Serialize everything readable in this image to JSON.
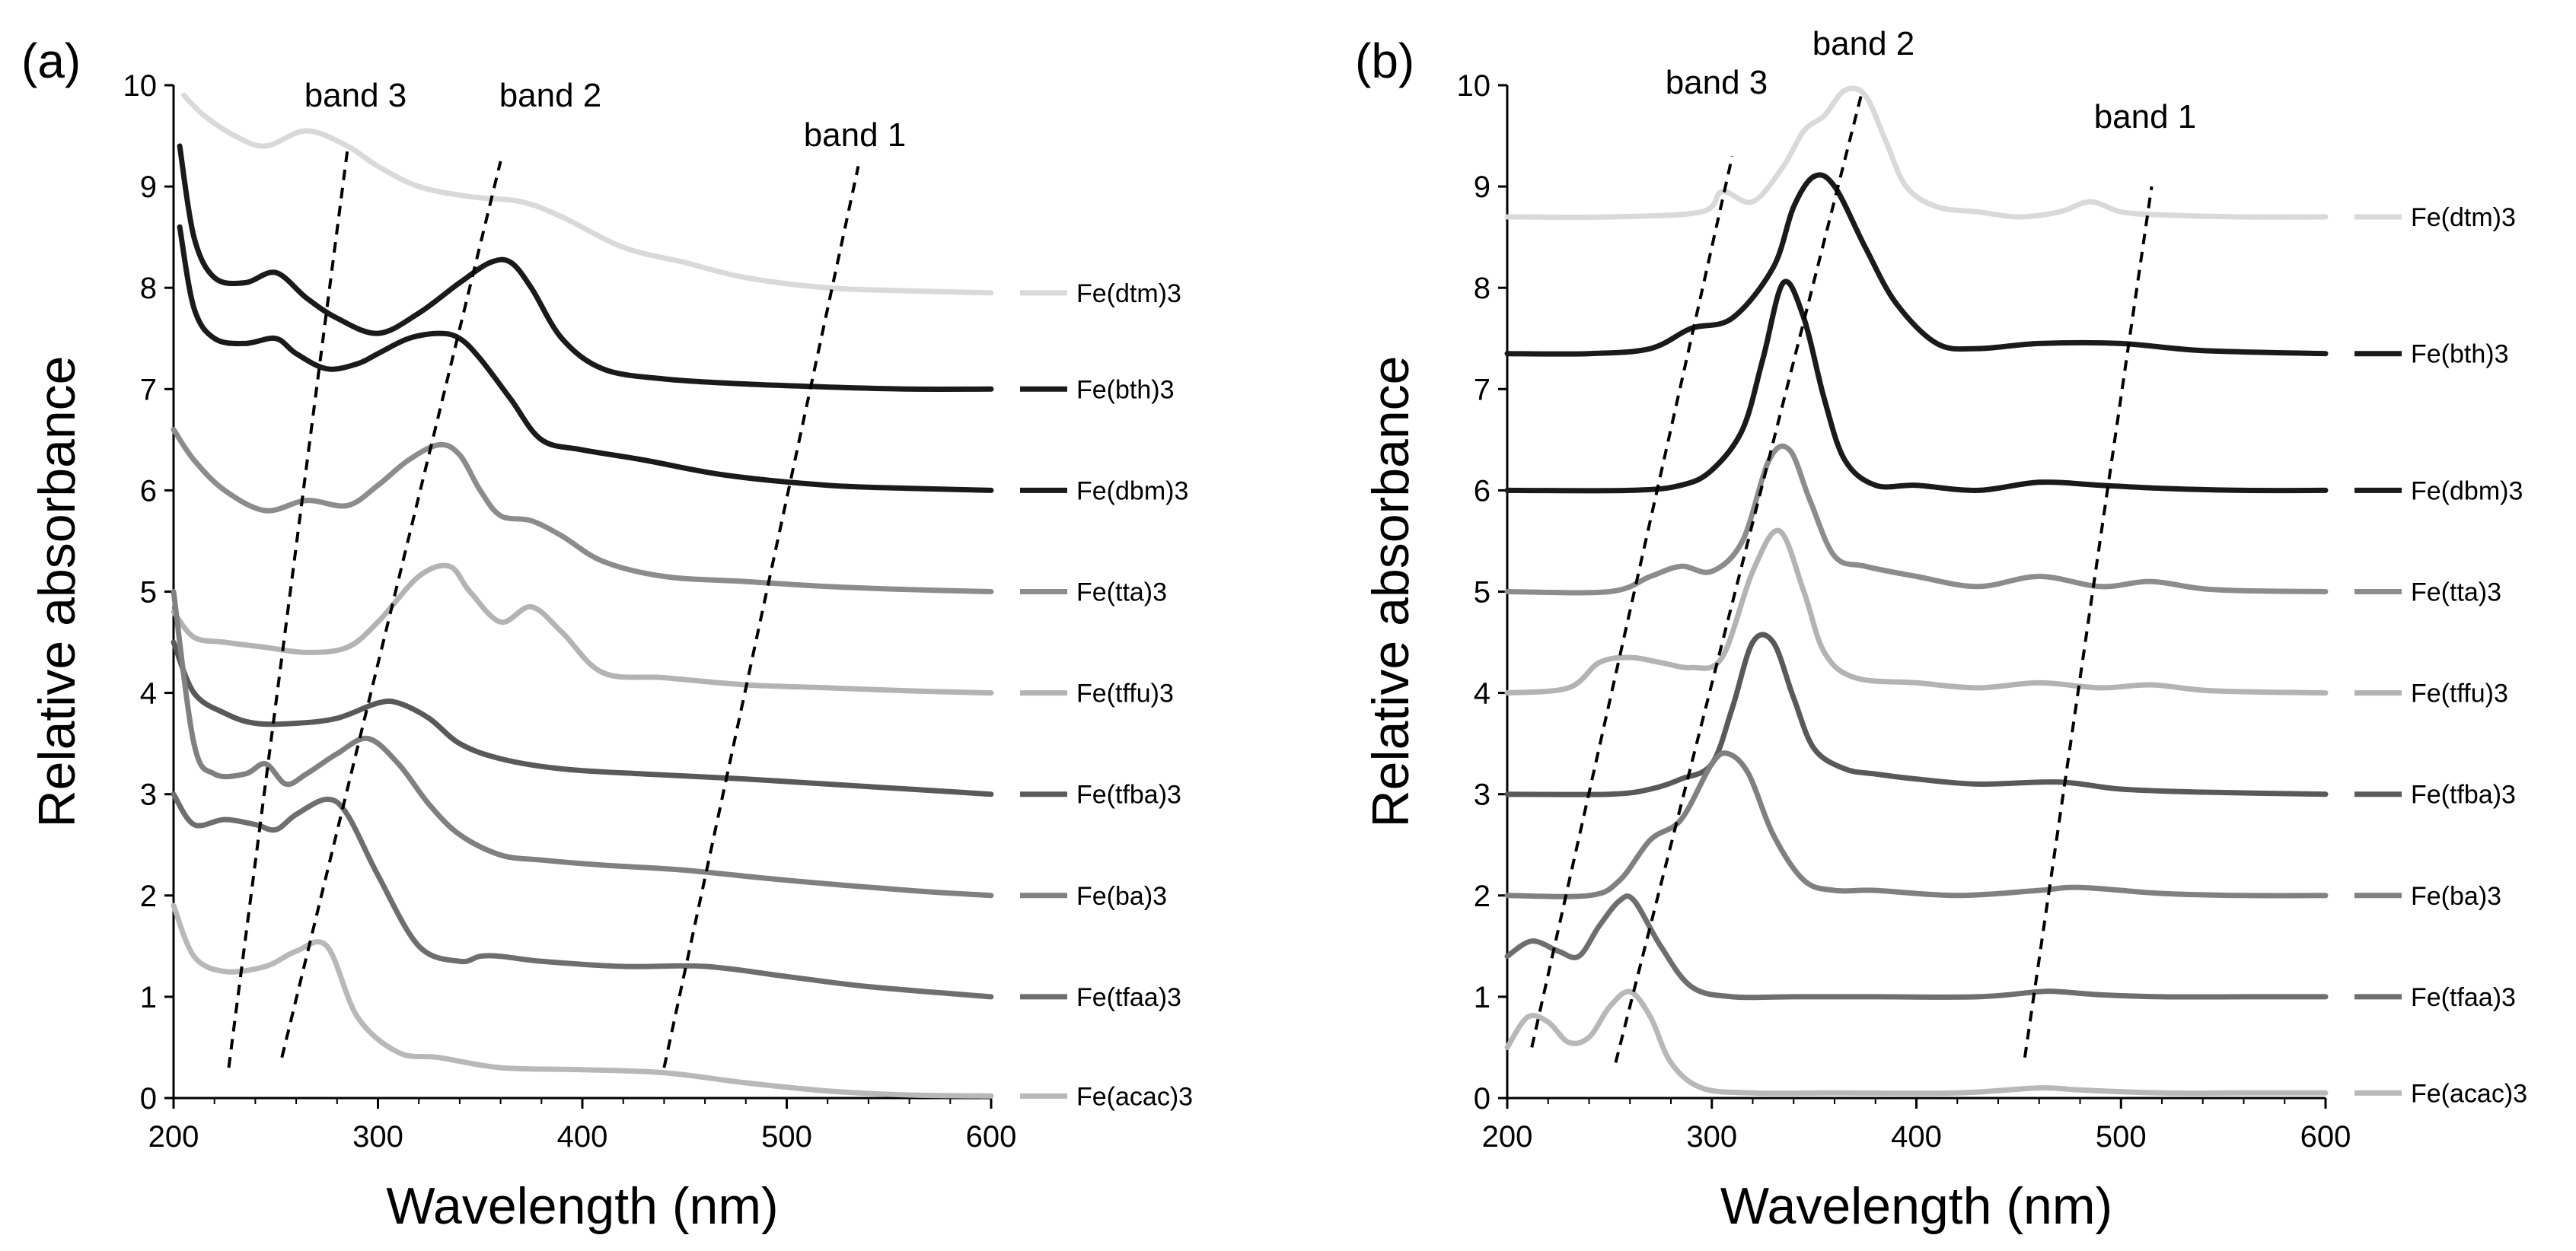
{
  "chart_data": [
    {
      "type": "line",
      "panel_label": "(a)",
      "xlabel": "Wavelength (nm)",
      "ylabel": "Relative absorbance",
      "xlim": [
        200,
        600
      ],
      "ylim": [
        0,
        10
      ],
      "xticks": [
        "200",
        "300",
        "400",
        "500",
        "600"
      ],
      "yticks": [
        "0",
        "1",
        "2",
        "3",
        "4",
        "5",
        "6",
        "7",
        "8",
        "9",
        "10"
      ],
      "series": [
        {
          "name": "Fe(dtm)3",
          "color": "#d9d9d9",
          "x": [
            205,
            215,
            230,
            245,
            265,
            285,
            300,
            320,
            345,
            370,
            390,
            420,
            450,
            480,
            520,
            560,
            600
          ],
          "y": [
            9.9,
            9.7,
            9.5,
            9.4,
            9.55,
            9.4,
            9.2,
            9.0,
            8.9,
            8.85,
            8.7,
            8.4,
            8.25,
            8.1,
            8.0,
            7.97,
            7.95
          ]
        },
        {
          "name": "Fe(bth)3",
          "color": "#1a1a1a",
          "x": [
            203,
            210,
            220,
            235,
            250,
            265,
            280,
            300,
            320,
            340,
            355,
            365,
            375,
            390,
            410,
            440,
            480,
            520,
            560,
            600
          ],
          "y": [
            9.4,
            8.5,
            8.1,
            8.05,
            8.15,
            7.9,
            7.7,
            7.55,
            7.75,
            8.05,
            8.25,
            8.25,
            8.0,
            7.5,
            7.2,
            7.1,
            7.05,
            7.02,
            7.0,
            7.0
          ]
        },
        {
          "name": "Fe(dbm)3",
          "color": "#1a1a1a",
          "x": [
            203,
            210,
            220,
            235,
            250,
            260,
            275,
            290,
            300,
            315,
            330,
            340,
            350,
            365,
            380,
            400,
            430,
            470,
            520,
            560,
            600
          ],
          "y": [
            8.6,
            7.8,
            7.5,
            7.45,
            7.5,
            7.35,
            7.2,
            7.25,
            7.35,
            7.5,
            7.55,
            7.5,
            7.3,
            6.9,
            6.5,
            6.4,
            6.3,
            6.15,
            6.05,
            6.02,
            6.0
          ]
        },
        {
          "name": "Fe(tta)3",
          "color": "#8c8c8c",
          "x": [
            200,
            210,
            225,
            245,
            265,
            285,
            300,
            315,
            330,
            340,
            350,
            360,
            375,
            390,
            410,
            440,
            480,
            520,
            560,
            600
          ],
          "y": [
            6.6,
            6.3,
            6.0,
            5.8,
            5.9,
            5.85,
            6.05,
            6.3,
            6.45,
            6.35,
            6.0,
            5.75,
            5.7,
            5.55,
            5.3,
            5.15,
            5.1,
            5.05,
            5.02,
            5.0
          ]
        },
        {
          "name": "Fe(tffu)3",
          "color": "#b3b3b3",
          "x": [
            200,
            210,
            225,
            245,
            265,
            285,
            300,
            320,
            335,
            345,
            360,
            375,
            390,
            410,
            440,
            480,
            520,
            560,
            600
          ],
          "y": [
            4.8,
            4.55,
            4.5,
            4.45,
            4.4,
            4.45,
            4.7,
            5.15,
            5.25,
            5.0,
            4.7,
            4.85,
            4.6,
            4.2,
            4.15,
            4.08,
            4.05,
            4.02,
            4.0
          ]
        },
        {
          "name": "Fe(tfba)3",
          "color": "#595959",
          "x": [
            200,
            210,
            225,
            240,
            260,
            280,
            300,
            310,
            325,
            340,
            360,
            390,
            430,
            480,
            520,
            560,
            600
          ],
          "y": [
            4.5,
            4.0,
            3.8,
            3.7,
            3.7,
            3.75,
            3.9,
            3.9,
            3.75,
            3.5,
            3.35,
            3.25,
            3.2,
            3.15,
            3.1,
            3.05,
            3.0
          ]
        },
        {
          "name": "Fe(ba)3",
          "color": "#808080",
          "x": [
            200,
            210,
            220,
            235,
            245,
            255,
            265,
            280,
            295,
            310,
            325,
            340,
            360,
            380,
            410,
            450,
            500,
            560,
            600
          ],
          "y": [
            5.0,
            3.5,
            3.2,
            3.2,
            3.3,
            3.1,
            3.2,
            3.4,
            3.55,
            3.3,
            2.9,
            2.6,
            2.4,
            2.35,
            2.3,
            2.25,
            2.15,
            2.05,
            2.0
          ]
        },
        {
          "name": "Fe(tfaa)3",
          "color": "#6e6e6e",
          "x": [
            200,
            210,
            225,
            240,
            250,
            260,
            275,
            285,
            300,
            320,
            340,
            350,
            360,
            380,
            420,
            460,
            500,
            540,
            600
          ],
          "y": [
            3.0,
            2.7,
            2.75,
            2.7,
            2.65,
            2.8,
            2.95,
            2.8,
            2.2,
            1.5,
            1.35,
            1.4,
            1.4,
            1.35,
            1.3,
            1.3,
            1.2,
            1.1,
            1.0
          ]
        },
        {
          "name": "Fe(acac)3",
          "color": "#b8b8b8",
          "x": [
            200,
            210,
            225,
            245,
            260,
            275,
            290,
            310,
            330,
            360,
            400,
            440,
            480,
            520,
            560,
            600
          ],
          "y": [
            1.9,
            1.4,
            1.25,
            1.3,
            1.45,
            1.5,
            0.8,
            0.45,
            0.4,
            0.3,
            0.28,
            0.25,
            0.15,
            0.07,
            0.03,
            0.02
          ]
        }
      ],
      "bands": [
        {
          "label": "band 1",
          "x1": 440,
          "y1": 0.3,
          "x2": 535,
          "y2": 9.2
        },
        {
          "label": "band 2",
          "x1": 253,
          "y1": 0.4,
          "x2": 360,
          "y2": 9.25
        },
        {
          "label": "band 3",
          "x1": 227,
          "y1": 0.3,
          "x2": 285,
          "y2": 9.35
        }
      ]
    },
    {
      "type": "line",
      "panel_label": "(b)",
      "xlabel": "Wavelength (nm)",
      "ylabel": "Relative absorbance",
      "xlim": [
        200,
        600
      ],
      "ylim": [
        0,
        10
      ],
      "xticks": [
        "200",
        "300",
        "400",
        "500",
        "600"
      ],
      "yticks": [
        "0",
        "1",
        "2",
        "3",
        "4",
        "5",
        "6",
        "7",
        "8",
        "9",
        "10"
      ],
      "series": [
        {
          "name": "Fe(dtm)3",
          "color": "#d9d9d9",
          "x": [
            200,
            250,
            295,
            305,
            320,
            335,
            345,
            355,
            365,
            375,
            385,
            395,
            410,
            430,
            450,
            470,
            485,
            500,
            520,
            560,
            600
          ],
          "y": [
            8.7,
            8.7,
            8.75,
            8.95,
            8.85,
            9.2,
            9.55,
            9.7,
            9.95,
            9.9,
            9.45,
            9.0,
            8.8,
            8.75,
            8.7,
            8.75,
            8.85,
            8.75,
            8.72,
            8.7,
            8.7
          ]
        },
        {
          "name": "Fe(bth)3",
          "color": "#1a1a1a",
          "x": [
            200,
            240,
            270,
            290,
            310,
            330,
            340,
            350,
            360,
            375,
            390,
            410,
            430,
            460,
            500,
            540,
            600
          ],
          "y": [
            7.35,
            7.35,
            7.4,
            7.6,
            7.7,
            8.2,
            8.8,
            9.1,
            9.0,
            8.4,
            7.85,
            7.45,
            7.4,
            7.45,
            7.45,
            7.38,
            7.35
          ]
        },
        {
          "name": "Fe(dbm)3",
          "color": "#1a1a1a",
          "x": [
            200,
            260,
            285,
            300,
            315,
            325,
            335,
            345,
            355,
            365,
            380,
            400,
            430,
            460,
            490,
            520,
            560,
            600
          ],
          "y": [
            6.0,
            6.0,
            6.05,
            6.2,
            6.6,
            7.3,
            8.05,
            7.7,
            6.9,
            6.3,
            6.05,
            6.05,
            6.0,
            6.08,
            6.05,
            6.02,
            6.0,
            6.0
          ]
        },
        {
          "name": "Fe(tta)3",
          "color": "#8c8c8c",
          "x": [
            200,
            250,
            270,
            285,
            300,
            315,
            328,
            338,
            348,
            360,
            375,
            400,
            430,
            460,
            490,
            515,
            545,
            600
          ],
          "y": [
            5.0,
            5.0,
            5.15,
            5.25,
            5.2,
            5.5,
            6.3,
            6.4,
            5.9,
            5.35,
            5.25,
            5.15,
            5.05,
            5.15,
            5.05,
            5.1,
            5.02,
            5.0
          ]
        },
        {
          "name": "Fe(tffu)3",
          "color": "#b3b3b3",
          "x": [
            200,
            230,
            245,
            260,
            275,
            290,
            305,
            320,
            333,
            345,
            355,
            370,
            400,
            430,
            460,
            490,
            515,
            545,
            600
          ],
          "y": [
            4.0,
            4.05,
            4.3,
            4.35,
            4.3,
            4.25,
            4.35,
            5.2,
            5.6,
            5.0,
            4.4,
            4.15,
            4.1,
            4.05,
            4.1,
            4.05,
            4.08,
            4.02,
            4.0
          ]
        },
        {
          "name": "Fe(tfba)3",
          "color": "#595959",
          "x": [
            200,
            250,
            270,
            285,
            300,
            310,
            320,
            330,
            340,
            350,
            365,
            380,
            400,
            430,
            470,
            500,
            540,
            600
          ],
          "y": [
            3.0,
            3.0,
            3.05,
            3.15,
            3.3,
            3.85,
            4.5,
            4.5,
            3.95,
            3.45,
            3.25,
            3.2,
            3.15,
            3.1,
            3.12,
            3.05,
            3.02,
            3.0
          ]
        },
        {
          "name": "Fe(ba)3",
          "color": "#808080",
          "x": [
            200,
            240,
            255,
            270,
            285,
            300,
            308,
            318,
            330,
            345,
            360,
            380,
            420,
            460,
            480,
            520,
            560,
            600
          ],
          "y": [
            2.0,
            2.0,
            2.15,
            2.55,
            2.75,
            3.3,
            3.4,
            3.2,
            2.6,
            2.15,
            2.05,
            2.05,
            2.0,
            2.05,
            2.08,
            2.02,
            2.0,
            2.0
          ]
        },
        {
          "name": "Fe(tfaa)3",
          "color": "#6e6e6e",
          "x": [
            200,
            212,
            225,
            235,
            245,
            255,
            262,
            275,
            290,
            310,
            340,
            380,
            430,
            460,
            470,
            490,
            520,
            560,
            600
          ],
          "y": [
            1.4,
            1.55,
            1.45,
            1.4,
            1.7,
            1.95,
            1.95,
            1.5,
            1.1,
            1.0,
            1.0,
            1.0,
            1.0,
            1.05,
            1.05,
            1.02,
            1.0,
            1.0,
            1.0
          ]
        },
        {
          "name": "Fe(acac)3",
          "color": "#b8b8b8",
          "x": [
            200,
            210,
            220,
            230,
            240,
            250,
            260,
            270,
            280,
            295,
            320,
            360,
            420,
            460,
            480,
            520,
            560,
            600
          ],
          "y": [
            0.5,
            0.8,
            0.75,
            0.55,
            0.6,
            0.9,
            1.05,
            0.8,
            0.35,
            0.1,
            0.05,
            0.05,
            0.05,
            0.1,
            0.08,
            0.05,
            0.05,
            0.05
          ]
        }
      ],
      "bands": [
        {
          "label": "band 1",
          "x1": 453,
          "y1": 0.4,
          "x2": 515,
          "y2": 9.0
        },
        {
          "label": "band 2",
          "x1": 253,
          "y1": 0.35,
          "x2": 373,
          "y2": 9.9
        },
        {
          "label": "band 3",
          "x1": 212,
          "y1": 0.5,
          "x2": 310,
          "y2": 9.3
        }
      ]
    }
  ]
}
